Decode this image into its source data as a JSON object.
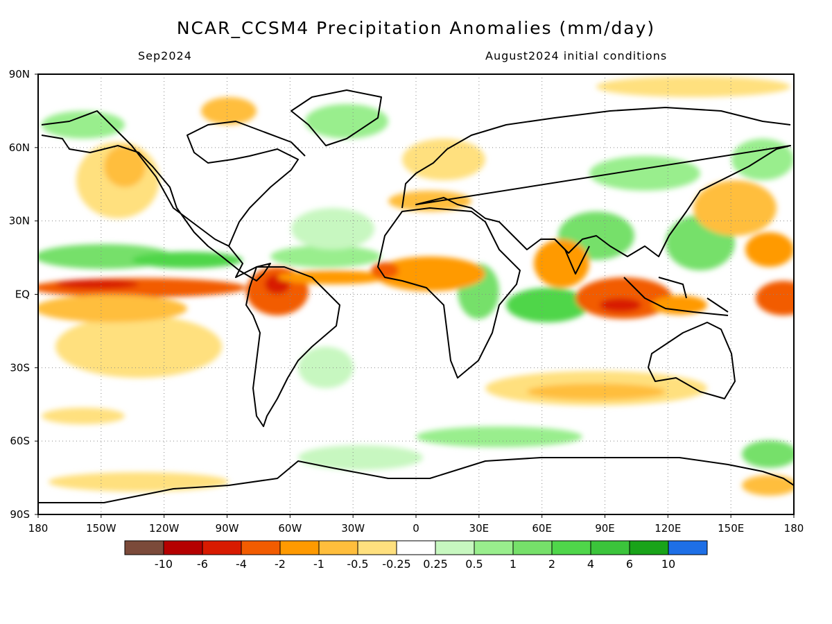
{
  "title": "NCAR_CCSM4 Precipitation Anomalies (mm/day)",
  "subtitle_left": "Sep2024",
  "subtitle_right": "August2024 initial conditions",
  "map": {
    "projection": "equirectangular",
    "lon_range": [
      -180,
      180
    ],
    "lat_range": [
      -90,
      90
    ],
    "gridlines": "dotted",
    "lat_tick_labels": [
      "90N",
      "60N",
      "30N",
      "EQ",
      "30S",
      "60S",
      "90S"
    ],
    "lon_tick_labels": [
      "180",
      "150W",
      "120W",
      "90W",
      "60W",
      "30W",
      "0",
      "30E",
      "60E",
      "90E",
      "120E",
      "150E",
      "180"
    ]
  },
  "colorbar": {
    "colors": [
      "#7b4a3a",
      "#b50000",
      "#d81b00",
      "#f25c00",
      "#ff9a00",
      "#ffbe3c",
      "#ffe07e",
      "#ffffff",
      "#c7f7c0",
      "#99ee8d",
      "#76e06a",
      "#4fd64a",
      "#3bc43b",
      "#19a319",
      "#1e6fe6"
    ],
    "tick_labels": [
      "-10",
      "-6",
      "-4",
      "-2",
      "-1",
      "-0.5",
      "-0.25",
      "0.25",
      "0.5",
      "1",
      "2",
      "4",
      "6",
      "10"
    ]
  },
  "anomaly_regions": [
    {
      "name": "Equatorial eastern Pacific",
      "level": "-4 to -2"
    },
    {
      "name": "Northern South America / Caribbean",
      "level": "-4 to -2"
    },
    {
      "name": "Sahel / equatorial Atlantic",
      "level": "-2 to -1"
    },
    {
      "name": "Eastern Indian Ocean / Maritime Continent",
      "level": "-2 to -1"
    },
    {
      "name": "Western equatorial Indian Ocean",
      "level": "1 to 2"
    },
    {
      "name": "North Pacific subtropics (ITCZ north edge)",
      "level": "1 to 2"
    },
    {
      "name": "Tropical North Atlantic",
      "level": "0.5 to 1"
    }
  ]
}
